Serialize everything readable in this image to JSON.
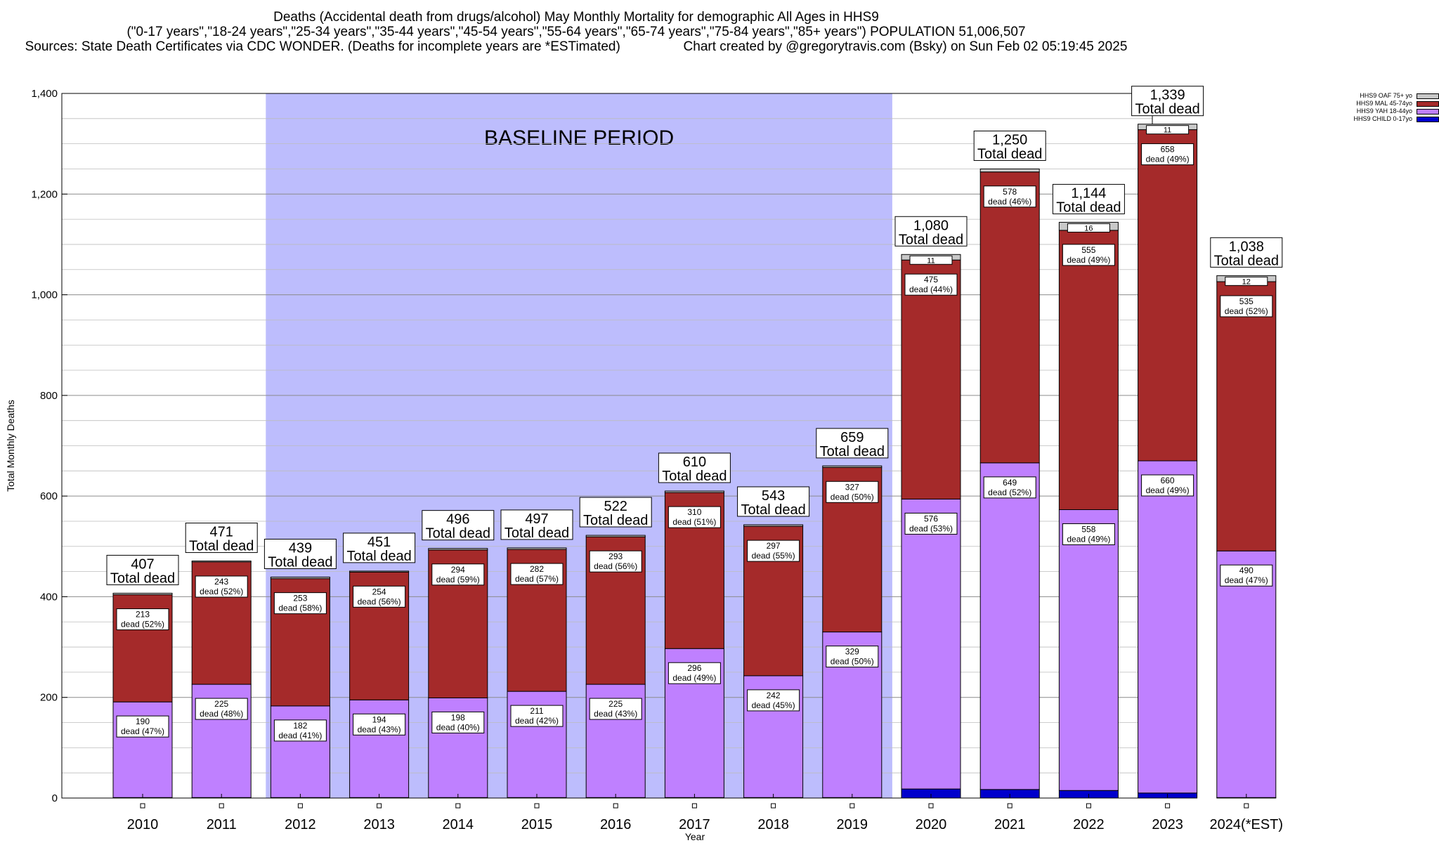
{
  "header": {
    "line1": "Deaths (Accidental death from drugs/alcohol) May Monthly Mortality for demographic All Ages in HHS9",
    "line2": "(\"0-17 years\",\"18-24 years\",\"25-34 years\",\"35-44 years\",\"45-54 years\",\"55-64 years\",\"65-74 years\",\"75-84 years\",\"85+ years\") POPULATION 51,006,507",
    "line3": "Sources: State Death Certificates via CDC WONDER. (Deaths for incomplete years are *ESTimated)                 Chart created by @gregorytravis.com (Bsky) on Sun Feb 02 05:19:45 2025"
  },
  "chart_data": {
    "type": "bar",
    "stacked": true,
    "xlabel": "Year",
    "ylabel": "Total Monthly Deaths",
    "ylim": [
      0,
      1400
    ],
    "y_ticks": [
      0,
      200,
      400,
      600,
      800,
      1000,
      1200,
      1400
    ],
    "y_tick_labels": [
      "0",
      "200",
      "400",
      "600",
      "800",
      "1,000",
      "1,200",
      "1,400"
    ],
    "grid": true,
    "legend_position": "top-right",
    "categories": [
      "2010",
      "2011",
      "2012",
      "2013",
      "2014",
      "2015",
      "2016",
      "2017",
      "2018",
      "2019",
      "2020",
      "2021",
      "2022",
      "2023",
      "2024(*EST)"
    ],
    "series": [
      {
        "name": "HHS9 CHILD 0-17yo",
        "color": "#0000cc",
        "values": [
          1,
          1,
          1,
          1,
          1,
          1,
          1,
          1,
          1,
          1,
          18,
          17,
          15,
          10,
          1
        ]
      },
      {
        "name": "HHS9 YAH 18-44yo",
        "color": "#bf80ff",
        "values": [
          190,
          225,
          182,
          194,
          198,
          211,
          225,
          296,
          242,
          329,
          576,
          649,
          558,
          660,
          490
        ],
        "labels": [
          "190",
          "225",
          "182",
          "194",
          "198",
          "211",
          "225",
          "296",
          "242",
          "329",
          "576",
          "649",
          "558",
          "660",
          "490"
        ],
        "pct_labels": [
          "dead (47%)",
          "dead (48%)",
          "dead (41%)",
          "dead (43%)",
          "dead (40%)",
          "dead (42%)",
          "dead (43%)",
          "dead (49%)",
          "dead (45%)",
          "dead (50%)",
          "dead (53%)",
          "dead (52%)",
          "dead (49%)",
          "dead (49%)",
          "dead (47%)"
        ]
      },
      {
        "name": "HHS9 MAL 45-74yo",
        "color": "#a52a2a",
        "values": [
          213,
          243,
          253,
          254,
          294,
          282,
          293,
          310,
          297,
          327,
          475,
          578,
          555,
          658,
          535
        ],
        "labels": [
          "213",
          "243",
          "253",
          "254",
          "294",
          "282",
          "293",
          "310",
          "297",
          "327",
          "475",
          "578",
          "555",
          "658",
          "535"
        ],
        "pct_labels": [
          "dead (52%)",
          "dead (52%)",
          "dead (58%)",
          "dead (56%)",
          "dead (59%)",
          "dead (57%)",
          "dead (56%)",
          "dead (51%)",
          "dead (55%)",
          "dead (50%)",
          "dead (44%)",
          "dead (46%)",
          "dead (49%)",
          "dead (49%)",
          "dead (52%)"
        ]
      },
      {
        "name": "HHS9 OAF 75+ yo",
        "color": "#c8c8c8",
        "values": [
          3,
          2,
          3,
          2,
          3,
          3,
          3,
          3,
          3,
          3,
          11,
          6,
          16,
          11,
          12
        ],
        "labels": [
          null,
          null,
          null,
          null,
          null,
          null,
          null,
          null,
          null,
          null,
          "11",
          null,
          "16",
          "11",
          "12"
        ]
      }
    ],
    "totals": [
      407,
      471,
      439,
      451,
      496,
      497,
      522,
      610,
      543,
      659,
      1080,
      1250,
      1144,
      1339,
      1038
    ],
    "total_labels": [
      "407",
      "471",
      "439",
      "451",
      "496",
      "497",
      "522",
      "610",
      "543",
      "659",
      "1,080",
      "1,250",
      "1,144",
      "1,339",
      "1,038"
    ],
    "total_caption": "Total dead",
    "annotations": [
      {
        "text": "BASELINE PERIOD",
        "x_start": "2012",
        "x_end": "2019",
        "color": "#bdbdfd"
      }
    ]
  }
}
